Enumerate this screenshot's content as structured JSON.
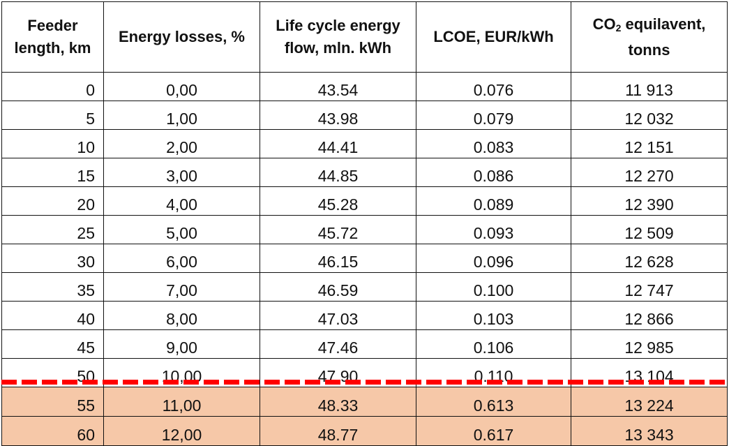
{
  "headers": {
    "feeder_length": "Feeder length, km",
    "energy_losses": "Energy losses, %",
    "life_cycle": "Life cycle energy flow, mln. kWh",
    "lcoe": "LCOE, EUR/kWh",
    "co2_prefix": "CO",
    "co2_sub": "2",
    "co2_suffix": " equilavent, tonns"
  },
  "rows": [
    {
      "km": "0",
      "losses": "0,00",
      "flow": "43.54",
      "lcoe": "0.076",
      "co2": "11 913"
    },
    {
      "km": "5",
      "losses": "1,00",
      "flow": "43.98",
      "lcoe": "0.079",
      "co2": "12 032"
    },
    {
      "km": "10",
      "losses": "2,00",
      "flow": "44.41",
      "lcoe": "0.083",
      "co2": "12 151"
    },
    {
      "km": "15",
      "losses": "3,00",
      "flow": "44.85",
      "lcoe": "0.086",
      "co2": "12 270"
    },
    {
      "km": "20",
      "losses": "4,00",
      "flow": "45.28",
      "lcoe": "0.089",
      "co2": "12 390"
    },
    {
      "km": "25",
      "losses": "5,00",
      "flow": "45.72",
      "lcoe": "0.093",
      "co2": "12 509"
    },
    {
      "km": "30",
      "losses": "6,00",
      "flow": "46.15",
      "lcoe": "0.096",
      "co2": "12 628"
    },
    {
      "km": "35",
      "losses": "7,00",
      "flow": "46.59",
      "lcoe": "0.100",
      "co2": "12 747"
    },
    {
      "km": "40",
      "losses": "8,00",
      "flow": "47.03",
      "lcoe": "0.103",
      "co2": "12 866"
    },
    {
      "km": "45",
      "losses": "9,00",
      "flow": "47.46",
      "lcoe": "0.106",
      "co2": "12 985"
    },
    {
      "km": "50",
      "losses": "10,00",
      "flow": "47.90",
      "lcoe": "0.110",
      "co2": "13 104"
    },
    {
      "km": "55",
      "losses": "11,00",
      "flow": "48.33",
      "lcoe": "0.613",
      "co2": "13 224",
      "highlight": true
    },
    {
      "km": "60",
      "losses": "12,00",
      "flow": "48.77",
      "lcoe": "0.617",
      "co2": "13 343",
      "highlight": true
    }
  ],
  "colors": {
    "highlight": "#f6c8a8",
    "threshold_line": "#ff0000"
  }
}
